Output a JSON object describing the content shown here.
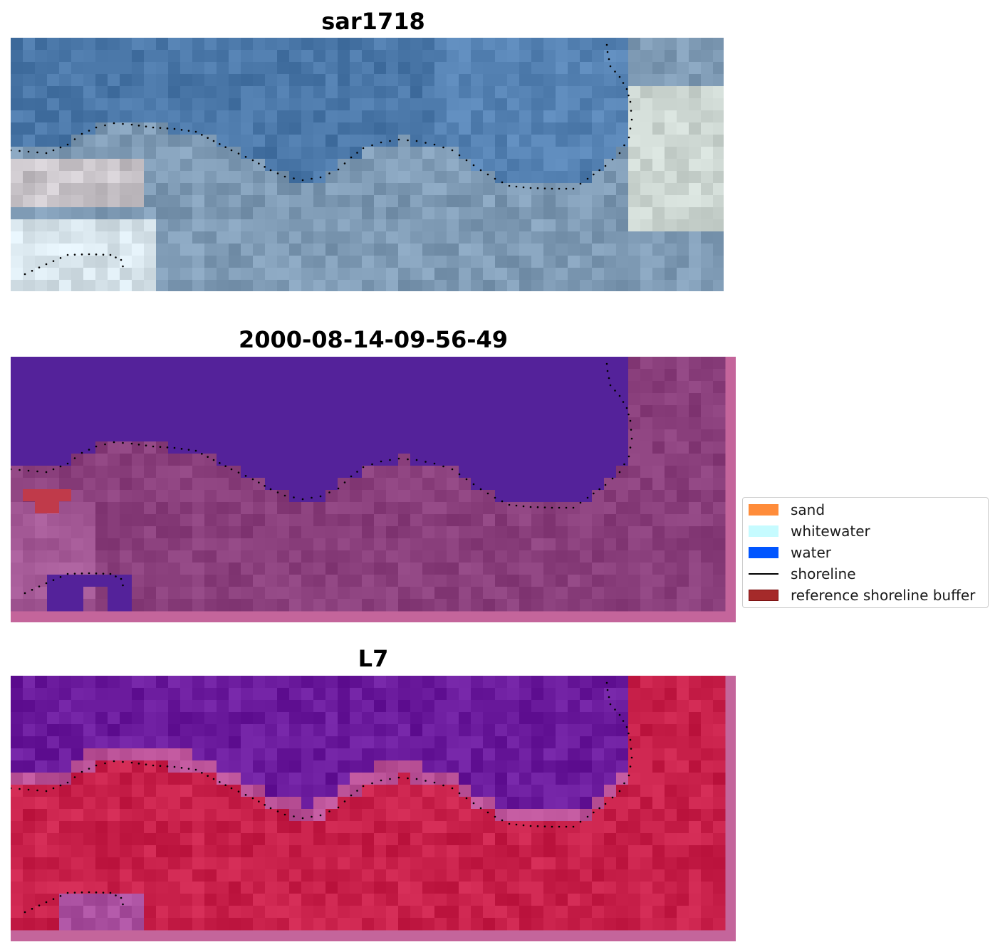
{
  "panels": [
    {
      "title": "sar1718",
      "kind": "rgb"
    },
    {
      "title": "2000-08-14-09-56-49",
      "kind": "classified"
    },
    {
      "title": "L7",
      "kind": "false-color"
    }
  ],
  "legend": {
    "items": [
      {
        "label": "sand",
        "color": "#ff8c3a",
        "type": "patch"
      },
      {
        "label": "whitewater",
        "color": "#c6fbff",
        "type": "patch"
      },
      {
        "label": "water",
        "color": "#0055ff",
        "type": "patch"
      },
      {
        "label": "shoreline",
        "color": "#000000",
        "type": "line"
      },
      {
        "label": "reference shoreline buffer",
        "color": "#a52a2a",
        "type": "patch",
        "edge": "#7a1010"
      }
    ]
  },
  "colors": {
    "water_class": "#54229a",
    "land_class": "#8a3f7c",
    "buffer_border": "#c4659b",
    "ref_buffer": "#c03a4a",
    "rgb_water": "#4a77a8",
    "rgb_land": "#7f9bb5",
    "nir_water": "#6a1a9c",
    "nir_land": "#c8204a"
  }
}
